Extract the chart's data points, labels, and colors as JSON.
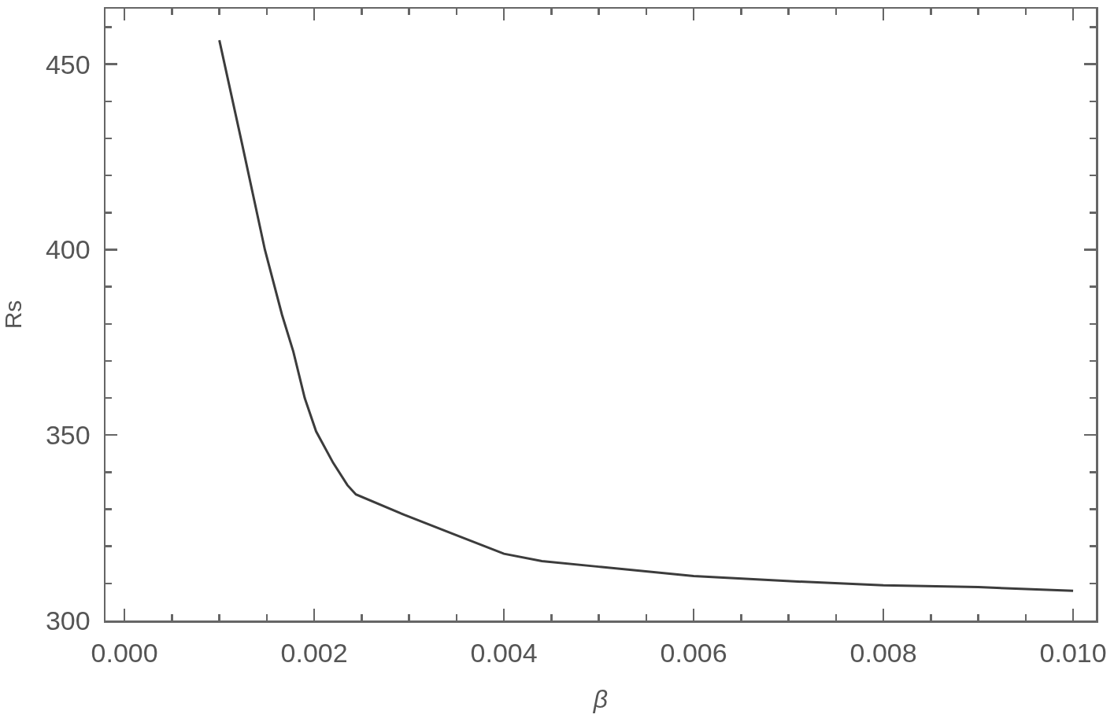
{
  "chart_data": {
    "type": "line",
    "xlabel": "β",
    "ylabel": "Rs",
    "x": [
      0.001,
      0.00124,
      0.00148,
      0.00166,
      0.00178,
      0.0019,
      0.00202,
      0.0022,
      0.00235,
      0.00244,
      0.00295,
      0.0035,
      0.004,
      0.0044,
      0.005,
      0.006,
      0.0071,
      0.008,
      0.009,
      0.01
    ],
    "series": [
      {
        "color": "#3c3c3c",
        "values": [
          456.5,
          428.5,
          400,
          382.5,
          372.5,
          360,
          351,
          342.5,
          336.5,
          334,
          328.5,
          323,
          318,
          316,
          314.5,
          312,
          310.5,
          309.5,
          309,
          308
        ]
      }
    ],
    "xlim": [
      -0.0002,
      0.01024
    ],
    "ylim": [
      300,
      465
    ],
    "xticks": [
      {
        "value": 0,
        "label": "0.000"
      },
      {
        "value": 0.0005,
        "label": null
      },
      {
        "value": 0.001,
        "label": null
      },
      {
        "value": 0.0015,
        "label": null
      },
      0.002,
      {
        "value": 0.0025,
        "label": null
      },
      {
        "value": 0.003,
        "label": null
      },
      {
        "value": 0.0035,
        "label": null
      },
      0.004,
      {
        "value": 0.0045,
        "label": null
      },
      {
        "value": 0.005,
        "label": null
      },
      {
        "value": 0.0055,
        "label": null
      },
      0.006,
      {
        "value": 0.0065,
        "label": null
      },
      {
        "value": 0.007,
        "label": null
      },
      {
        "value": 0.0075,
        "label": null
      },
      0.008,
      {
        "value": 0.0085,
        "label": null
      },
      {
        "value": 0.009,
        "label": null
      },
      {
        "value": 0.0095,
        "label": null
      },
      {
        "value": 0.01,
        "label": "0.010"
      }
    ],
    "yticks": [
      300,
      {
        "value": 310,
        "label": null
      },
      {
        "value": 320,
        "label": null
      },
      {
        "value": 330,
        "label": null
      },
      {
        "value": 340,
        "label": null
      },
      350,
      {
        "value": 360,
        "label": null
      },
      {
        "value": 370,
        "label": null
      },
      {
        "value": 380,
        "label": null
      },
      {
        "value": 390,
        "label": null
      },
      400,
      {
        "value": 410,
        "label": null
      },
      {
        "value": 420,
        "label": null
      },
      {
        "value": 430,
        "label": null
      },
      {
        "value": 440,
        "label": null
      },
      450,
      {
        "value": 460,
        "label": null
      }
    ]
  }
}
